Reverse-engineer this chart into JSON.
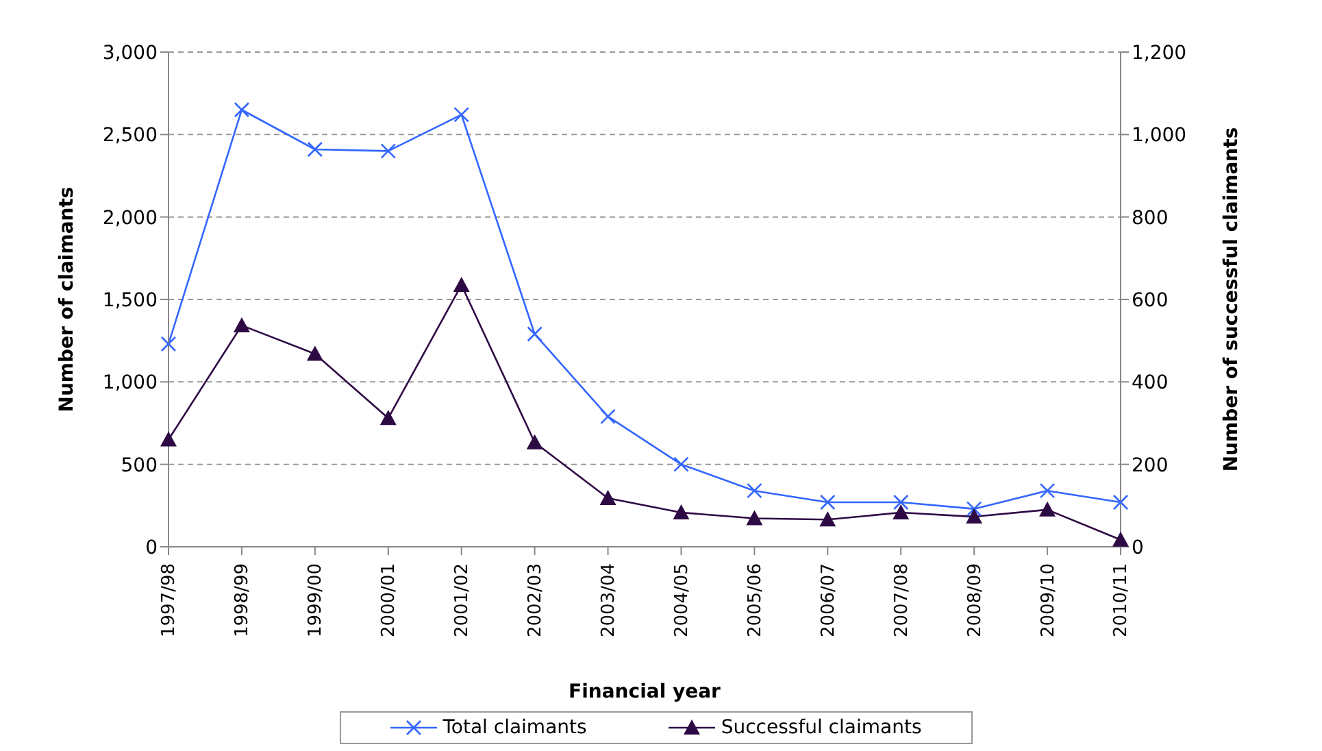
{
  "chart_data": {
    "type": "line",
    "xlabel": "Financial year",
    "ylabel": "Number of claimants",
    "y2label": "Number of successful claimants",
    "categories": [
      "1997/98",
      "1998/99",
      "1999/00",
      "2000/01",
      "2001/02",
      "2002/03",
      "2003/04",
      "2004/05",
      "2005/06",
      "2006/07",
      "2007/08",
      "2008/09",
      "2009/10",
      "2010/11"
    ],
    "series": [
      {
        "name": "Total claimants",
        "color": "#3366ff",
        "marker": "cross",
        "values": [
          1230,
          2650,
          2410,
          2400,
          2620,
          1290,
          790,
          500,
          340,
          270,
          270,
          230,
          340,
          270
        ]
      },
      {
        "name": "Successful claimants",
        "color": "#2e0a45",
        "marker": "triangle",
        "axis": "y2",
        "values": [
          260,
          537,
          468,
          312,
          635,
          253,
          118,
          83,
          69,
          66,
          83,
          73,
          90,
          17
        ]
      }
    ],
    "ylim": [
      0,
      3000
    ],
    "yticks": [
      0,
      {
        "value": 500,
        "label": "500"
      },
      {
        "value": 1000,
        "label": "1,000"
      },
      {
        "value": 1500,
        "label": "1,500"
      },
      {
        "value": 2000,
        "label": "2,000"
      },
      {
        "value": 2500,
        "label": "2,500"
      },
      {
        "value": 3000,
        "label": "3,000"
      }
    ],
    "y2lim": [
      0,
      1200
    ],
    "y2ticks": [
      0,
      200,
      400,
      600,
      800,
      {
        "value": 1000,
        "label": "1,000"
      },
      {
        "value": 1200,
        "label": "1,200"
      }
    ],
    "grid": "y",
    "legend": "bottom"
  }
}
